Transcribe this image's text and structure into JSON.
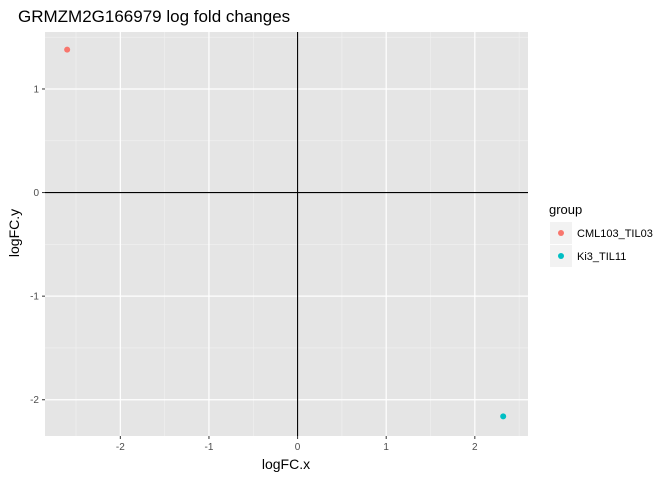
{
  "chart_data": {
    "type": "scatter",
    "title": "GRMZM2G166979 log fold changes",
    "xlabel": "logFC.x",
    "ylabel": "logFC.y",
    "xlim": [
      -2.85,
      2.6
    ],
    "ylim": [
      -2.35,
      1.55
    ],
    "x_ticks": [
      -2,
      -1,
      0,
      1,
      2
    ],
    "y_ticks": [
      -2,
      -1,
      0,
      1
    ],
    "reference_lines": {
      "x": 0,
      "y": 0
    },
    "grid": true,
    "panel_background": "#e5e5e5",
    "legend": {
      "title": "group",
      "placement": "right"
    },
    "series": [
      {
        "name": "CML103_TIL03",
        "color": "#f8766d",
        "points": [
          {
            "x": -2.6,
            "y": 1.38
          }
        ]
      },
      {
        "name": "Ki3_TIL11",
        "color": "#00bfc4",
        "points": [
          {
            "x": 2.32,
            "y": -2.16
          }
        ]
      }
    ]
  }
}
